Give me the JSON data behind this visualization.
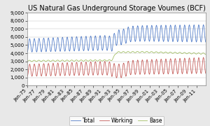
{
  "title": "US Natural Gas Underground Storage Voumes (BCF)",
  "ylim": [
    0,
    9000
  ],
  "yticks": [
    0,
    1000,
    2000,
    3000,
    4000,
    5000,
    6000,
    7000,
    8000,
    9000
  ],
  "ytick_labels": [
    "0",
    "1,000",
    "2,000",
    "3,000",
    "4,000",
    "5,000",
    "6,000",
    "7,000",
    "8,000",
    "9,000"
  ],
  "xtick_labels": [
    "Jan-75",
    "Jan-77",
    "Jan-79",
    "Jan-81",
    "Jan-83",
    "Jan-85",
    "Jan-87",
    "Jan-89",
    "Jan-91",
    "Jan-93",
    "Jan-95",
    "Jan-97",
    "Jan-99",
    "Jan-01",
    "Jan-03",
    "Jan-05",
    "Jan-07",
    "Jan-09",
    "Jan-11"
  ],
  "total_color": "#4472C4",
  "working_color": "#C0504D",
  "base_color": "#9BBB59",
  "legend_labels": [
    "Total",
    "Working",
    "Base"
  ],
  "title_fontsize": 7.0,
  "tick_fontsize": 5.0,
  "legend_fontsize": 5.5,
  "line_width": 0.55,
  "fig_bg": "#e8e8e8",
  "plot_bg": "#ffffff"
}
